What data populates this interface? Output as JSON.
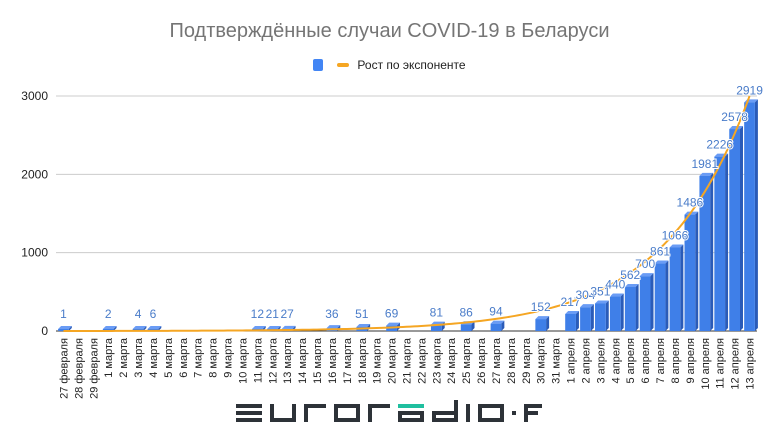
{
  "chart_data": {
    "type": "bar",
    "title": "Подтверждённые случаи COVID-19 в Беларуси",
    "xlabel": "",
    "ylabel": "",
    "ylim": [
      0,
      3000
    ],
    "yticks": [
      0,
      1000,
      2000,
      3000
    ],
    "grid": true,
    "legend_position": "top",
    "legend": [
      {
        "name": "",
        "type": "bar",
        "color": "#4285f4"
      },
      {
        "name": "Рост по экспоненте",
        "type": "line",
        "color": "#f5a623"
      }
    ],
    "categories": [
      "27 февраля",
      "28 февраля",
      "29 февраля",
      "1 марта",
      "2 марта",
      "3 марта",
      "4 марта",
      "5 марта",
      "6 марта",
      "7 марта",
      "8 марта",
      "9 марта",
      "10 марта",
      "11 марта",
      "12 марта",
      "13 марта",
      "14 марта",
      "15 марта",
      "16 марта",
      "17 марта",
      "18 марта",
      "19 марта",
      "20 марта",
      "21 марта",
      "22 марта",
      "23 марта",
      "24 марта",
      "25 марта",
      "26 марта",
      "27 марта",
      "28 марта",
      "29 марта",
      "30 марта",
      "31 марта",
      "1 апреля",
      "2 апреля",
      "3 апреля",
      "4 апреля",
      "5 апреля",
      "6 апреля",
      "7 апреля",
      "8 апреля",
      "9 апреля",
      "10 апреля",
      "11 апреля",
      "12 апреля",
      "13 апреля"
    ],
    "series": [
      {
        "name": "Подтверждённые случаи",
        "type": "bar",
        "color": "#4285f4",
        "values": [
          1,
          null,
          null,
          2,
          null,
          4,
          6,
          null,
          null,
          null,
          null,
          null,
          null,
          12,
          21,
          27,
          null,
          null,
          36,
          null,
          51,
          null,
          69,
          null,
          null,
          81,
          null,
          86,
          null,
          94,
          null,
          null,
          152,
          null,
          217,
          304,
          351,
          440,
          562,
          700,
          861,
          1066,
          1486,
          1981,
          2226,
          2578,
          2919
        ]
      },
      {
        "name": "Рост по экспоненте",
        "type": "line",
        "color": "#f5a623",
        "trend": "exponential"
      }
    ]
  },
  "legend": {
    "line_label": "Рост по экспоненте"
  },
  "branding": {
    "logo_text": "euroradio·fm"
  }
}
